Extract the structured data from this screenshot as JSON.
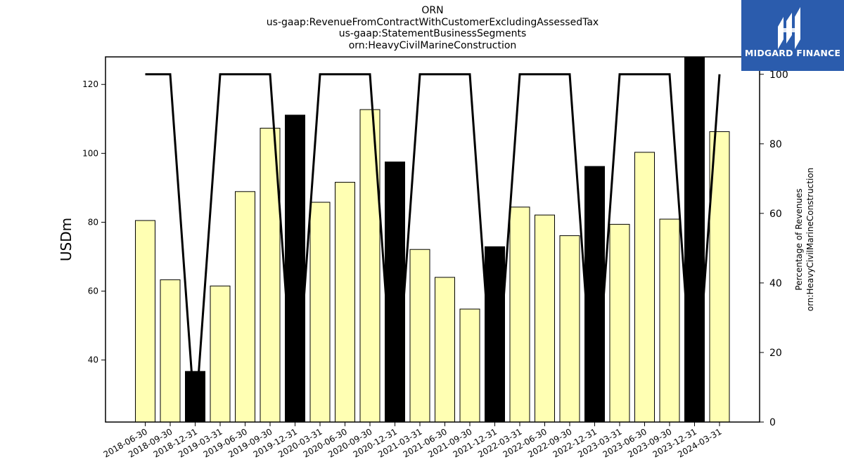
{
  "titles": [
    "ORN",
    "us-gaap:RevenueFromContractWithCustomerExcludingAssessedTax",
    "us-gaap:StatementBusinessSegments",
    "orn:HeavyCivilMarineConstruction"
  ],
  "logo": {
    "text": "MIDGARD FINANCE",
    "background": "#2b5cad"
  },
  "chart_data": {
    "type": "bar",
    "categories": [
      "2018-06-30",
      "2018-09-30",
      "2018-12-31",
      "2019-03-31",
      "2019-06-30",
      "2019-09-30",
      "2019-12-31",
      "2020-03-31",
      "2020-06-30",
      "2020-09-30",
      "2020-12-31",
      "2021-03-31",
      "2021-06-30",
      "2021-09-30",
      "2021-12-31",
      "2022-03-31",
      "2022-06-30",
      "2022-09-30",
      "2022-12-31",
      "2023-03-31",
      "2023-06-30",
      "2023-09-30",
      "2023-12-31",
      "2024-03-31"
    ],
    "series": [
      {
        "axis": "left",
        "values": [
          80.5,
          63.3,
          36.7,
          61.5,
          88.9,
          107.3,
          111.1,
          85.8,
          91.6,
          112.7,
          97.5,
          72.1,
          64.0,
          54.8,
          72.9,
          84.4,
          82.1,
          76.1,
          96.2,
          79.4,
          100.3,
          80.9,
          128.0,
          106.3
        ],
        "highlight": [
          false,
          false,
          true,
          false,
          false,
          false,
          true,
          false,
          false,
          false,
          true,
          false,
          false,
          false,
          true,
          false,
          false,
          false,
          true,
          false,
          false,
          false,
          true,
          false
        ],
        "color": "#ffffb3",
        "highlight_color": "#000000"
      },
      {
        "axis": "right",
        "type": "line",
        "values": [
          100,
          100,
          0,
          100,
          100,
          100,
          0,
          100,
          100,
          100,
          0,
          100,
          100,
          100,
          0,
          100,
          100,
          100,
          0,
          100,
          100,
          100,
          0,
          100
        ],
        "color": "#000000"
      }
    ],
    "ylabel": "USDm",
    "y2label": [
      "Percentage of Revenues",
      "orn:HeavyCivilMarineConstruction"
    ],
    "ylim": [
      22,
      128
    ],
    "y2lim": [
      0,
      105
    ],
    "yticks": [
      40,
      60,
      80,
      100,
      120
    ],
    "y2ticks": [
      0,
      20,
      40,
      60,
      80,
      100
    ],
    "grid": false
  }
}
